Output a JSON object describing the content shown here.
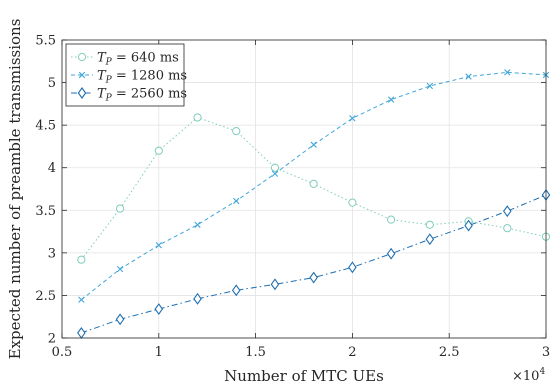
{
  "chart_data": {
    "type": "line",
    "xlabel": "Number of MTC UEs",
    "ylabel": "Expected number of preamble transmissions",
    "x_exponent_label": "×10",
    "x_exponent_power": "4",
    "xlim": [
      0.5,
      3
    ],
    "ylim": [
      2,
      5.5
    ],
    "xticks": [
      0.5,
      1,
      1.5,
      2,
      2.5,
      3
    ],
    "xtick_labels": [
      "0.5",
      "1",
      "1.5",
      "2",
      "2.5",
      "3"
    ],
    "yticks": [
      2,
      2.5,
      3,
      3.5,
      4,
      4.5,
      5,
      5.5
    ],
    "ytick_labels": [
      "2",
      "2.5",
      "3",
      "3.5",
      "4",
      "4.5",
      "5",
      "5.5"
    ],
    "grid": true,
    "legend_position": "top-left",
    "series": [
      {
        "name": "T_P = 640 ms",
        "legend_main": "T",
        "legend_sub": "P",
        "legend_rest": " = 640 ms",
        "color": "#7fcdbb",
        "marker": "circle",
        "line_style": "dotted",
        "x": [
          0.6,
          0.8,
          1.0,
          1.2,
          1.4,
          1.6,
          1.8,
          2.0,
          2.2,
          2.4,
          2.6,
          2.8,
          3.0
        ],
        "y": [
          2.92,
          3.52,
          4.2,
          4.59,
          4.43,
          4.0,
          3.81,
          3.59,
          3.39,
          3.33,
          3.37,
          3.29,
          3.19
        ]
      },
      {
        "name": "T_P = 1280 ms",
        "legend_main": "T",
        "legend_sub": "P",
        "legend_rest": " = 1280 ms",
        "color": "#41a6d9",
        "marker": "x",
        "line_style": "dashed",
        "x": [
          0.6,
          0.8,
          1.0,
          1.2,
          1.4,
          1.6,
          1.8,
          2.0,
          2.2,
          2.4,
          2.6,
          2.8,
          3.0
        ],
        "y": [
          2.45,
          2.81,
          3.09,
          3.33,
          3.61,
          3.93,
          4.27,
          4.58,
          4.8,
          4.96,
          5.07,
          5.12,
          5.09
        ]
      },
      {
        "name": "T_P = 2560 ms",
        "legend_main": "T",
        "legend_sub": "P",
        "legend_rest": " = 2560 ms",
        "color": "#1f6eb0",
        "marker": "diamond",
        "line_style": "dashdot",
        "x": [
          0.6,
          0.8,
          1.0,
          1.2,
          1.4,
          1.6,
          1.8,
          2.0,
          2.2,
          2.4,
          2.6,
          2.8,
          3.0
        ],
        "y": [
          2.06,
          2.22,
          2.34,
          2.46,
          2.56,
          2.63,
          2.71,
          2.83,
          2.99,
          3.16,
          3.32,
          3.49,
          3.68
        ]
      }
    ]
  }
}
